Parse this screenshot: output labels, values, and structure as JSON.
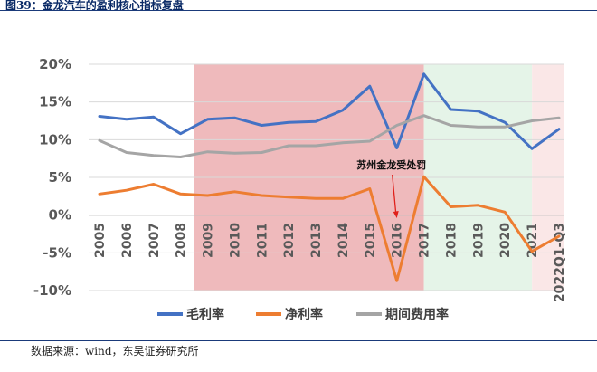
{
  "figure": {
    "title": "图39：金龙汽车的盈利核心指标复盘",
    "source": "数据来源：wind，东吴证券研究所"
  },
  "chart_data": {
    "type": "line",
    "categories": [
      "2005",
      "2006",
      "2007",
      "2008",
      "2009",
      "2010",
      "2011",
      "2012",
      "2013",
      "2014",
      "2015",
      "2016",
      "2017",
      "2018",
      "2019",
      "2020",
      "2021",
      "2022Q1-Q3"
    ],
    "ylim": [
      -10,
      20
    ],
    "yticks": [
      -10,
      -5,
      0,
      5,
      10,
      15,
      20
    ],
    "ytick_labels": [
      "-10%",
      "-5%",
      "0%",
      "5%",
      "10%",
      "15%",
      "20%"
    ],
    "grid": true,
    "legend_position": "bottom",
    "series": [
      {
        "name": "毛利率",
        "color": "#4472c4",
        "values": [
          13.1,
          12.7,
          13.0,
          10.8,
          12.7,
          12.9,
          11.9,
          12.3,
          12.4,
          13.9,
          17.1,
          8.9,
          18.7,
          14.0,
          13.8,
          12.3,
          8.8,
          11.4
        ]
      },
      {
        "name": "净利率",
        "color": "#ed7d31",
        "values": [
          2.8,
          3.3,
          4.1,
          2.8,
          2.6,
          3.1,
          2.6,
          2.4,
          2.2,
          2.2,
          3.5,
          -8.7,
          5.1,
          1.1,
          1.3,
          0.4,
          -4.8,
          -2.8
        ]
      },
      {
        "name": "期间费用率",
        "color": "#a5a5a5",
        "values": [
          9.9,
          8.3,
          7.9,
          7.7,
          8.4,
          8.2,
          8.3,
          9.2,
          9.2,
          9.6,
          9.8,
          11.9,
          13.2,
          11.9,
          11.7,
          11.7,
          12.5,
          12.9
        ]
      }
    ],
    "shaded_periods": [
      {
        "from": "2008",
        "to": "2017",
        "color": "#e9a3a6"
      },
      {
        "from": "2017",
        "to": "2021",
        "color": "#e2f3e6"
      },
      {
        "from": "2021",
        "to": "2022Q1-Q3",
        "color": "#f9e4e4"
      }
    ],
    "annotation": {
      "text": "苏州金龙受处罚",
      "target": "2016"
    }
  }
}
